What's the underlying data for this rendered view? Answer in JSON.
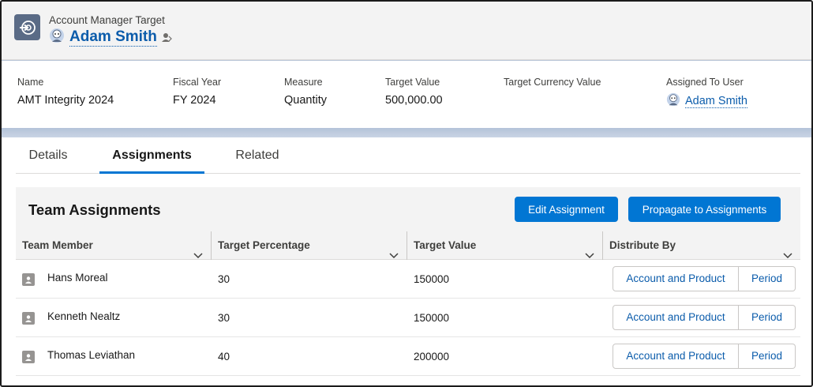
{
  "header": {
    "object_label": "Account Manager Target",
    "record_name": "Adam Smith"
  },
  "highlights": {
    "name_label": "Name",
    "name_value": "AMT Integrity 2024",
    "fiscal_year_label": "Fiscal Year",
    "fiscal_year_value": "FY 2024",
    "measure_label": "Measure",
    "measure_value": "Quantity",
    "target_value_label": "Target Value",
    "target_value_value": "500,000.00",
    "target_currency_label": "Target Currency Value",
    "target_currency_value": "",
    "assigned_to_label": "Assigned To User",
    "assigned_to_value": "Adam Smith"
  },
  "tabs": [
    {
      "label": "Details",
      "active": false
    },
    {
      "label": "Assignments",
      "active": true
    },
    {
      "label": "Related",
      "active": false
    }
  ],
  "panel": {
    "title": "Team Assignments",
    "edit_button": "Edit Assignment",
    "propagate_button": "Propagate to Assignments"
  },
  "table": {
    "columns": [
      "Team Member",
      "Target Percentage",
      "Target Value",
      "Distribute By"
    ],
    "rows": [
      {
        "member": "Hans Moreal",
        "percentage": "30",
        "value": "150000",
        "btn1": "Account and Product",
        "btn2": "Period"
      },
      {
        "member": "Kenneth Nealtz",
        "percentage": "30",
        "value": "150000",
        "btn1": "Account and Product",
        "btn2": "Period"
      },
      {
        "member": "Thomas Leviathan",
        "percentage": "40",
        "value": "200000",
        "btn1": "Account and Product",
        "btn2": "Period"
      }
    ]
  },
  "colors": {
    "brand": "#0176d3",
    "link": "#0b5cab",
    "record_icon": "#5a6b86",
    "header_bg": "#f3f3f3"
  },
  "icons": {
    "record_icon": "target-arrow-icon",
    "user_avatar": "astro-avatar-icon",
    "change_owner": "change-owner-icon",
    "column_menu": "chevron-down-icon",
    "member_avatar": "user-avatar-icon"
  }
}
